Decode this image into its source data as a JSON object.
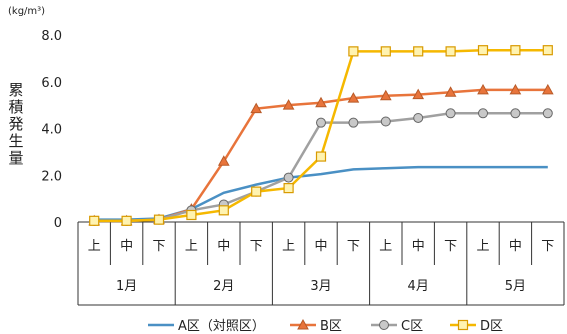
{
  "chart_data": {
    "type": "line",
    "unit": "(kg/m³)",
    "ylabel": "累積発生量",
    "ylim": [
      0,
      8
    ],
    "yticks": [
      "0",
      "2.0",
      "4.0",
      "6.0",
      "8.0"
    ],
    "categories": [
      "上",
      "中",
      "下",
      "上",
      "中",
      "下",
      "上",
      "中",
      "下",
      "上",
      "中",
      "下",
      "上",
      "中",
      "下"
    ],
    "months": [
      "1月",
      "2月",
      "3月",
      "4月",
      "5月"
    ],
    "series": [
      {
        "name": "A区（対照区）",
        "color": "#4a90c4",
        "marker": "none",
        "values": [
          0.1,
          0.1,
          0.15,
          0.55,
          1.25,
          1.6,
          1.9,
          2.05,
          2.25,
          2.3,
          2.35,
          2.35,
          2.35,
          2.35,
          2.35
        ]
      },
      {
        "name": "B区",
        "color": "#e8743b",
        "marker": "triangle",
        "values": [
          0.05,
          0.05,
          0.1,
          0.55,
          2.6,
          4.85,
          5.0,
          5.1,
          5.3,
          5.4,
          5.45,
          5.55,
          5.65,
          5.65,
          5.65
        ]
      },
      {
        "name": "C区",
        "color": "#a0a0a0",
        "marker": "circle",
        "values": [
          0.05,
          0.05,
          0.1,
          0.5,
          0.75,
          1.3,
          1.9,
          4.25,
          4.25,
          4.3,
          4.45,
          4.65,
          4.65,
          4.65,
          4.65
        ]
      },
      {
        "name": "D区",
        "color": "#f5b800",
        "marker": "square",
        "values": [
          0.05,
          0.05,
          0.1,
          0.3,
          0.5,
          1.3,
          1.45,
          2.8,
          7.3,
          7.3,
          7.3,
          7.3,
          7.35,
          7.35,
          7.35
        ]
      }
    ]
  }
}
